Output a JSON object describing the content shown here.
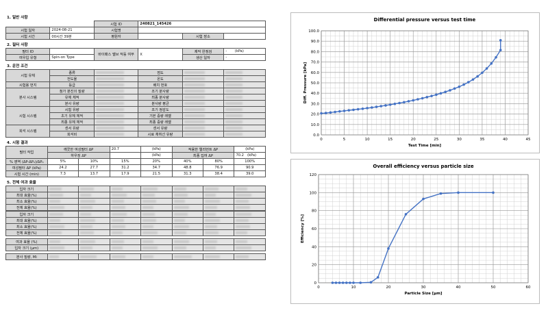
{
  "section1": {
    "title": "1. 일반 사항",
    "test_date_label": "시험 일자",
    "test_date": "2024-08-21",
    "test_time_label": "시험 시간",
    "test_time": "00시간 39분",
    "test_id_label": "시험 ID",
    "test_id": "240821_145426",
    "test_name_label": "시험명",
    "requester_label": "평원자",
    "place_label": "시험 장소"
  },
  "section2": {
    "title": "2. 필터 사항",
    "filter_id_label": "필터 ID",
    "filter_type_label": "여우입 유형",
    "filter_type": "Spin-on Type",
    "bypass_label": "바이패스 밸브 작동 여부",
    "bypass_value": "X",
    "rated_label": "제작 완정검",
    "rated_value": "-",
    "rated_unit": "(kPa)",
    "made_label": "생산 일자",
    "made_value": "-"
  },
  "section3": {
    "title": "3. 운전 조건",
    "groups": [
      "시험 유체",
      "시험용 먼지",
      "분사 시스템",
      "시험 시스템",
      "희석 시스템"
    ],
    "left_labels": [
      "종류",
      "전도율",
      "등급",
      "첨가 분진의 질량",
      "유체 체적",
      "분사 유량",
      "시험 유량",
      "초기 유체 체적",
      "최종 유체 체적",
      "센서 유량",
      "희석비"
    ],
    "right_labels": [
      "점도",
      "온도",
      "배치 번호",
      "조기 분사량",
      "최종 분사량",
      "분사량 평균",
      "조기 정감도",
      "기본 중량 레벨",
      "최종 중량 레벨",
      "센서 유량",
      "시료 채취선 유량"
    ]
  },
  "section4": {
    "title": "4. 시험 결과",
    "result_label": "필터 작업",
    "clean_dp_label": "깨끗한 여성필터 ΔP",
    "clean_dp": "20.7",
    "clean_dp_unit": "(kPa)",
    "housing_dp_label": "하우징 ΔP",
    "housing_dp_unit": "(kPa)",
    "final_dp_label": "적용한 엘리먼트 ΔP",
    "final_dp_unit": "(kPa)",
    "end_dp_label": "최종 집여 ΔP",
    "end_dp": "70.2",
    "end_dp_unit": "(kPa)",
    "row1_label": "% 영역 (ΔP-ΔP₀)/ΔP₀",
    "row2_label": "여성필터 ΔP (kPa)",
    "row3_label": "시험 시간 (min)",
    "columns": [
      "5%",
      "10%",
      "15%",
      "20%",
      "40%",
      "80%",
      "100%"
    ],
    "dp_values": [
      "24.2",
      "27.7",
      "31.2",
      "34.7",
      "48.8",
      "76.9",
      "90.9"
    ],
    "time_values": [
      "7.3",
      "13.7",
      "17.9",
      "21.5",
      "31.3",
      "38.4",
      "39.0"
    ]
  },
  "section5": {
    "title": "5. 전체 여과 효율",
    "rows_a": [
      "입자 크기",
      "최대 효율(%)",
      "최소 효율(%)",
      "전체 효율(%)"
    ],
    "rows_b": [
      "입자 크기",
      "최대 효율(%)",
      "최소 효율(%)",
      "전체 효율(%)"
    ],
    "rows_c": [
      "여과 효율 (%)",
      "입자 크기 (μm)"
    ],
    "row_d": "분사 질량, Mi"
  },
  "chart_data": [
    {
      "type": "line",
      "title": "Differential pressure versus test time",
      "xlabel": "Test Time [min]",
      "ylabel": "Diff. Pressure [kPa]",
      "xlim": [
        0,
        45
      ],
      "ylim": [
        0,
        100
      ],
      "xticks": [
        "0",
        "5",
        "10",
        "15",
        "20",
        "25",
        "30",
        "35",
        "40",
        "45"
      ],
      "yticks": [
        "0.0",
        "10.0",
        "20.0",
        "30.0",
        "40.0",
        "50.0",
        "60.0",
        "70.0",
        "80.0",
        "90.0",
        "100.0"
      ],
      "grid": true,
      "color": "#4472c4",
      "x": [
        0,
        1,
        2,
        3,
        4,
        5,
        6,
        7,
        8,
        9,
        10,
        11,
        12,
        13,
        14,
        15,
        16,
        17,
        18,
        19,
        20,
        21,
        22,
        23,
        24,
        25,
        26,
        27,
        28,
        29,
        30,
        31,
        32,
        33,
        34,
        35,
        36,
        37,
        38,
        39,
        39
      ],
      "y": [
        20.7,
        21.0,
        21.5,
        22.0,
        22.6,
        23.1,
        23.6,
        24.1,
        24.6,
        25.1,
        25.7,
        26.3,
        26.9,
        27.6,
        28.3,
        29.0,
        29.8,
        30.6,
        31.4,
        32.3,
        33.2,
        34.2,
        35.2,
        36.3,
        37.4,
        38.6,
        39.9,
        41.3,
        42.8,
        44.5,
        46.3,
        48.3,
        50.6,
        53.2,
        56.2,
        59.7,
        63.8,
        68.6,
        74.5,
        81.5,
        90.9
      ]
    },
    {
      "type": "line",
      "title": "Overall efficiency versus particle size",
      "xlabel": "Particle Size [μm]",
      "ylabel": "Efficiency [%]",
      "xlim": [
        0,
        60
      ],
      "ylim": [
        0,
        120
      ],
      "xticks": [
        "0",
        "10",
        "20",
        "30",
        "40",
        "50",
        "60"
      ],
      "yticks": [
        "0",
        "20",
        "40",
        "60",
        "80",
        "100",
        "120"
      ],
      "grid": true,
      "color": "#4472c4",
      "x": [
        4,
        5,
        6,
        7,
        8,
        9,
        10,
        12,
        15,
        17,
        20,
        25,
        30,
        35,
        40,
        50
      ],
      "y": [
        0,
        0,
        0,
        0,
        0,
        0,
        0,
        0,
        0.5,
        6,
        38,
        76,
        93,
        99,
        100,
        100
      ]
    }
  ]
}
